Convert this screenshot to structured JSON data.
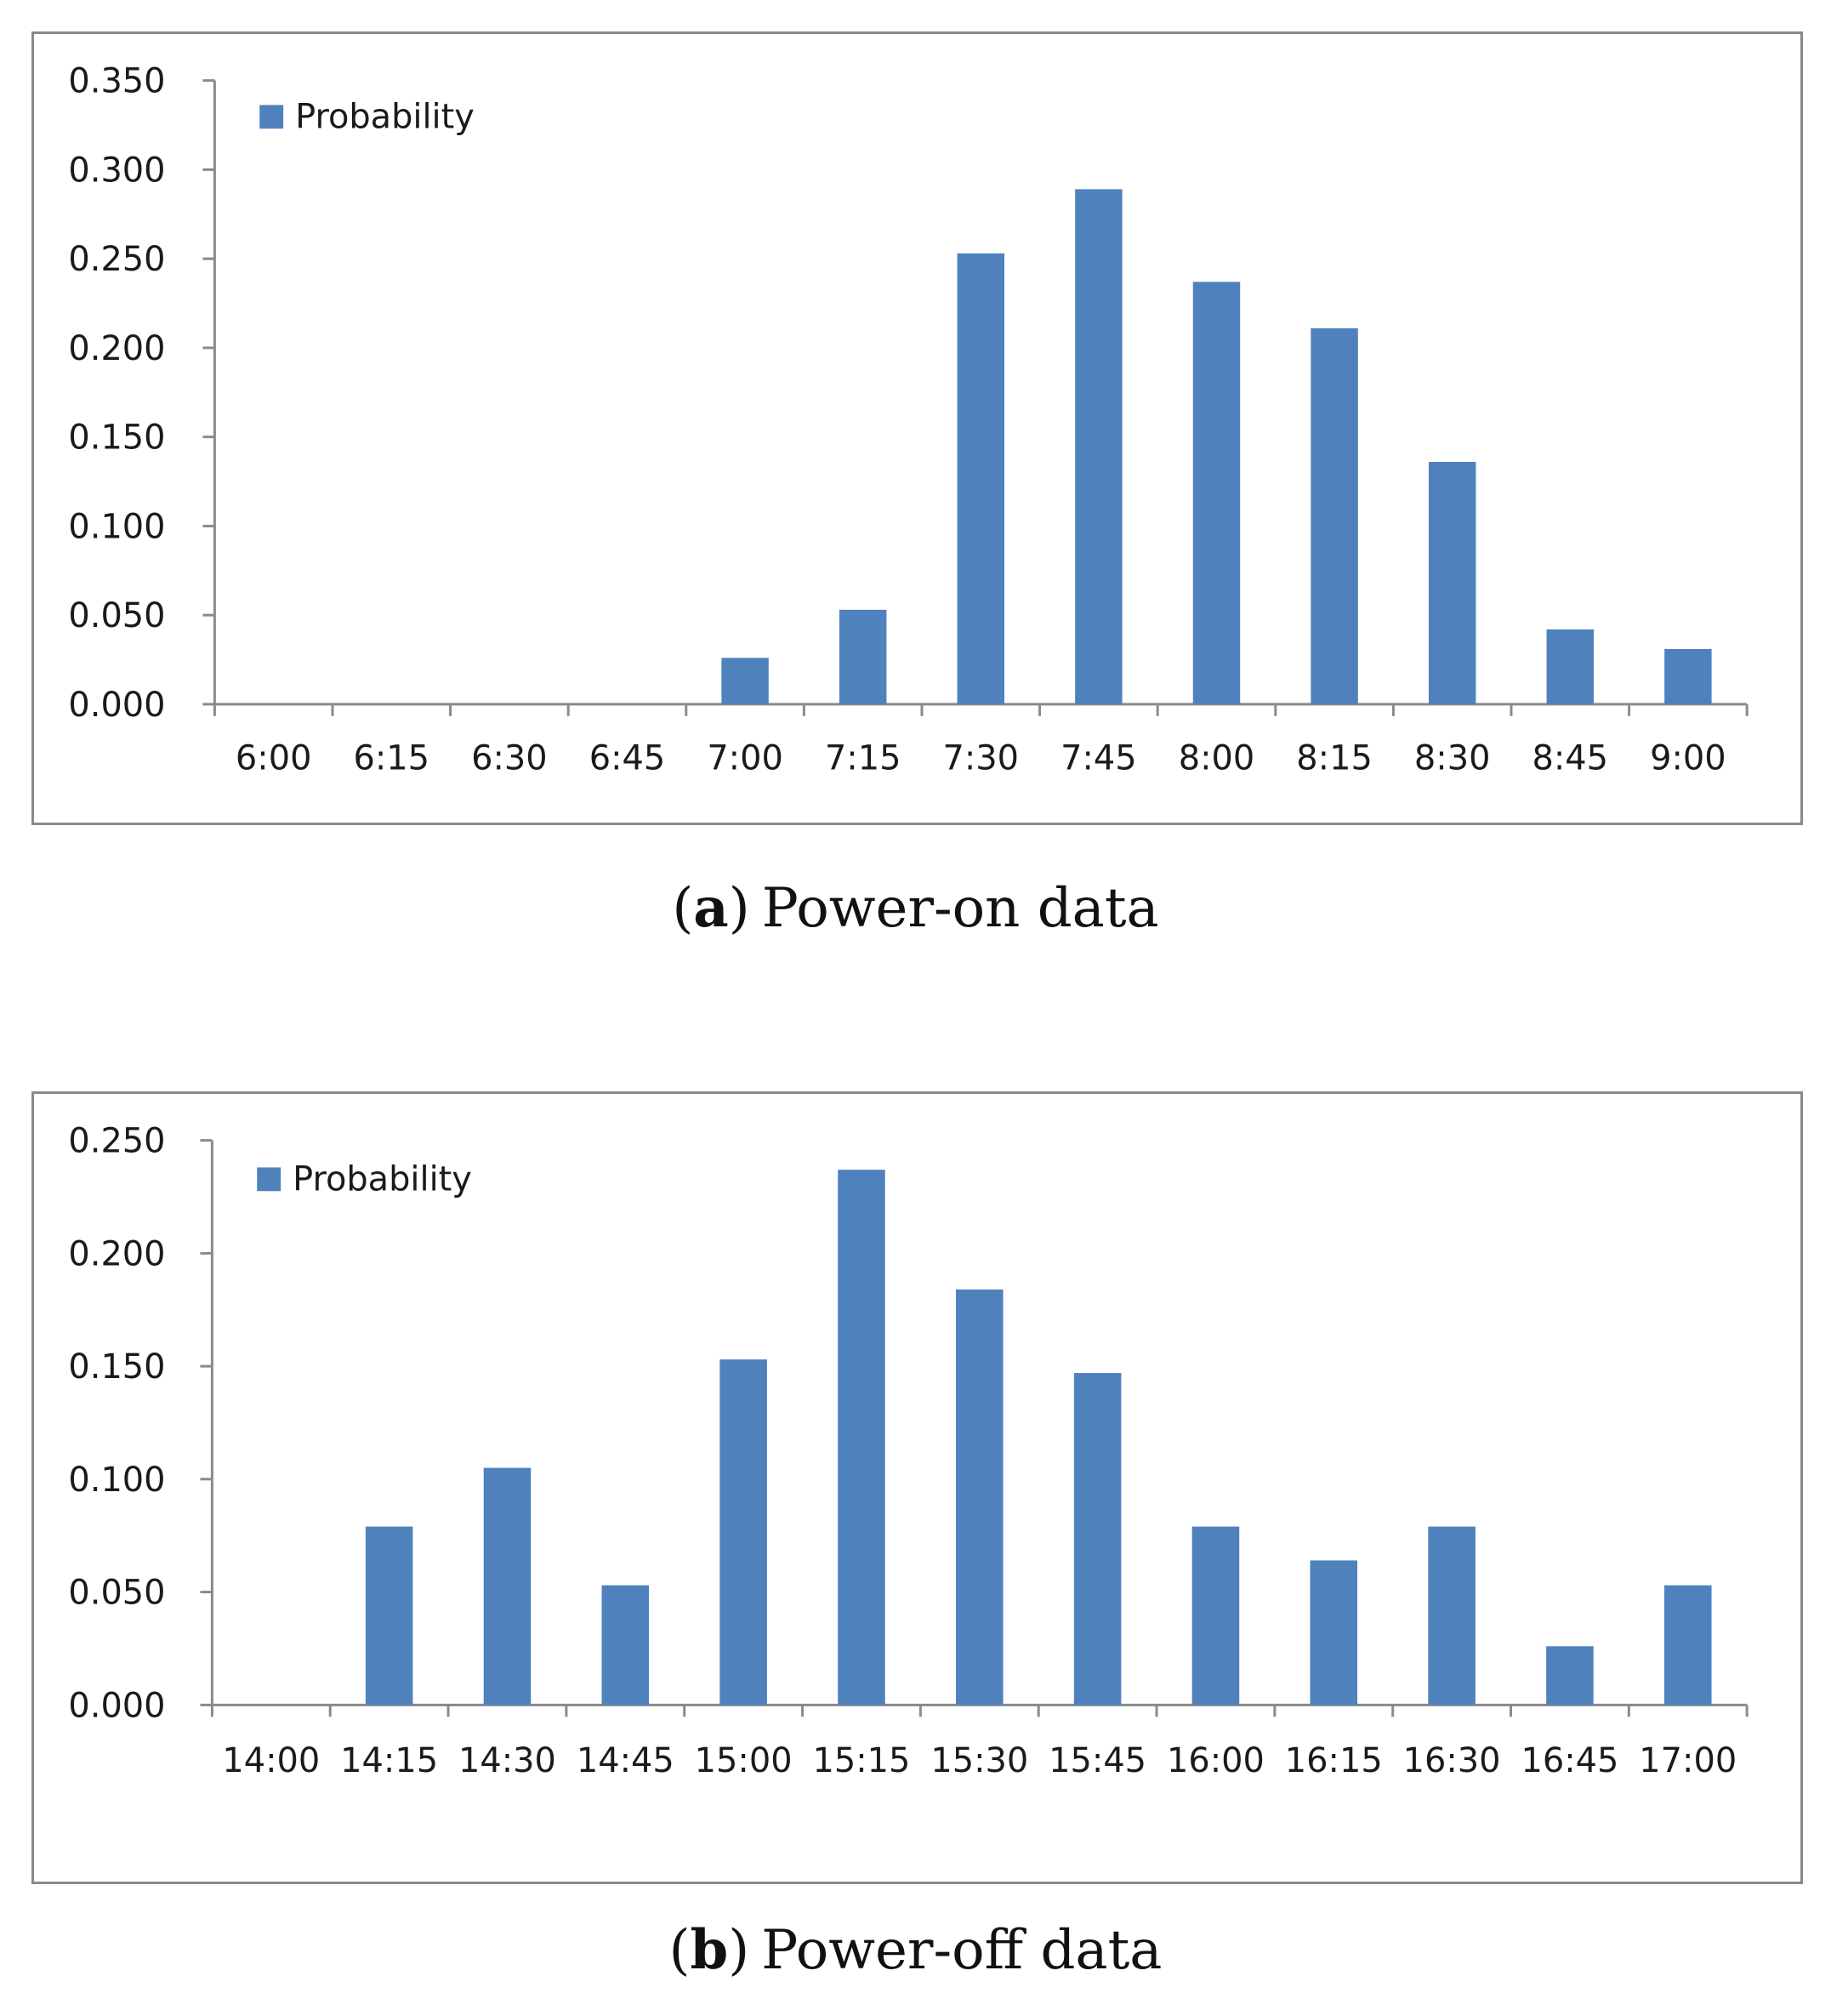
{
  "colors": {
    "bar": "#4f81bd",
    "axis": "#8a8a8a",
    "frame": "#898989",
    "text": "#1a1a1a"
  },
  "chart_data": [
    {
      "id": "a",
      "type": "bar",
      "caption_letter": "a",
      "caption_text": "Power-on data",
      "legend": [
        "Probability"
      ],
      "legend_position": "top-left",
      "categories": [
        "6:00",
        "6:15",
        "6:30",
        "6:45",
        "7:00",
        "7:15",
        "7:30",
        "7:45",
        "8:00",
        "8:15",
        "8:30",
        "8:45",
        "9:00"
      ],
      "series": [
        {
          "name": "Probability",
          "values": [
            0,
            0,
            0,
            0,
            0.026,
            0.053,
            0.253,
            0.289,
            0.237,
            0.211,
            0.136,
            0.042,
            0.031
          ]
        }
      ],
      "ylim": [
        0,
        0.35
      ],
      "yticks": [
        "0.000",
        "0.050",
        "0.100",
        "0.150",
        "0.200",
        "0.250",
        "0.300",
        "0.350"
      ],
      "grid": false,
      "xlabel": "",
      "ylabel": ""
    },
    {
      "id": "b",
      "type": "bar",
      "caption_letter": "b",
      "caption_text": "Power-off data",
      "legend": [
        "Probability"
      ],
      "legend_position": "top-left",
      "categories": [
        "14:00",
        "14:15",
        "14:30",
        "14:45",
        "15:00",
        "15:15",
        "15:30",
        "15:45",
        "16:00",
        "16:15",
        "16:30",
        "16:45",
        "17:00"
      ],
      "series": [
        {
          "name": "Probability",
          "values": [
            0,
            0.079,
            0.105,
            0.053,
            0.153,
            0.237,
            0.184,
            0.147,
            0.079,
            0.064,
            0.079,
            0.026,
            0.053
          ]
        }
      ],
      "ylim": [
        0,
        0.25
      ],
      "yticks": [
        "0.000",
        "0.050",
        "0.100",
        "0.150",
        "0.200",
        "0.250"
      ],
      "grid": false,
      "xlabel": "",
      "ylabel": ""
    }
  ]
}
